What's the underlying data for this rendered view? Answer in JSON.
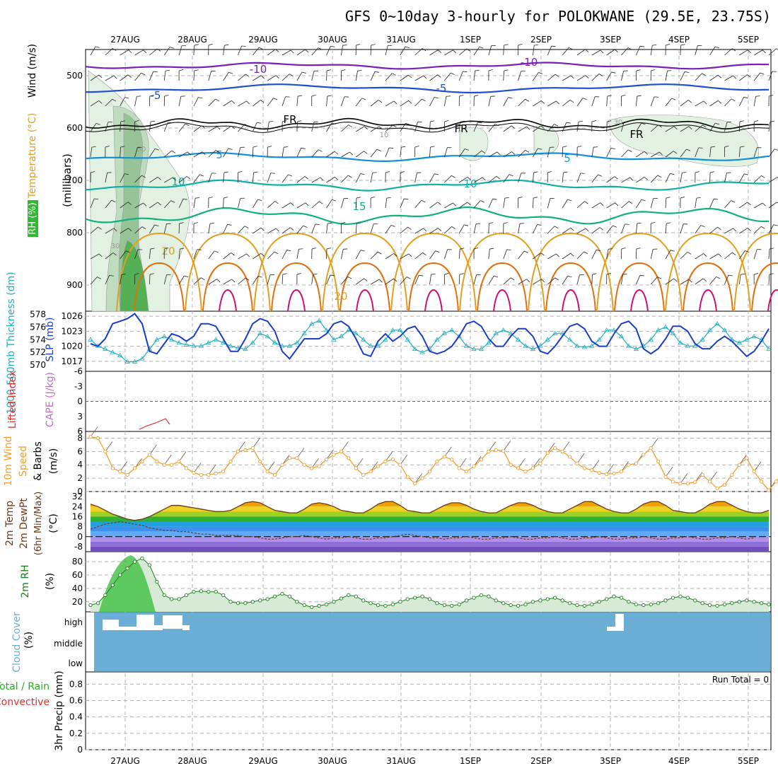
{
  "title": "GFS 0~10day 3-hourly for POLOKWANE (29.5E, 23.75S)",
  "date_labels": [
    "27AUG",
    "28AUG",
    "29AUG",
    "30AUG",
    "31AUG",
    "1SEP",
    "2SEP",
    "3SEP",
    "4SEP",
    "5SEP"
  ],
  "colors": {
    "temp_neg10": "#7a1fb8",
    "temp_neg5": "#1f4fd0",
    "temp_5": "#1090d8",
    "temp_10": "#10b0a8",
    "temp_15": "#10b080",
    "temp_20": "#e0a020",
    "temp_25": "#e07010",
    "temp_30": "#d01070",
    "slp": "#1a3ec8",
    "thickness": "#20b0c0",
    "wind_speed": "#f0a030",
    "rh": "#208020",
    "cloud": "#6aaed6",
    "lifted": "#e03030"
  },
  "panels": {
    "upper": {
      "label_rh": "RH (%)",
      "label_temp": "Temperature (°C)",
      "label_wind": "Wind (m/s)",
      "label_units": "(millibars)",
      "ticks": [
        "500",
        "600",
        "700",
        "800",
        "900"
      ],
      "contour_labels": [
        "-10",
        "-10",
        "-5",
        "-5",
        "FR",
        "FR",
        "FR",
        "5",
        "5",
        "10",
        "10",
        "15",
        "20",
        "20",
        "30",
        "10",
        "50",
        "30"
      ]
    },
    "slp": {
      "label_thick": "1000-500mb Thickness (dm)",
      "label_slp": "SLP (mb)",
      "left_ticks": [
        "578",
        "576",
        "574",
        "572",
        "570"
      ],
      "right_ticks": [
        "1026",
        "1023",
        "1020",
        "1017"
      ]
    },
    "cape": {
      "label_li": "Lifted Index",
      "label_cape": "CAPE (J/kg)",
      "ticks": [
        "-6",
        "-3",
        "0",
        "3",
        "6"
      ]
    },
    "wind10": {
      "label1": "10m Wind",
      "label2": "Speed",
      "label3": "& Barbs",
      "label4": "(m/s)",
      "ticks": [
        "8",
        "6",
        "4",
        "2",
        "0"
      ]
    },
    "temp2m": {
      "label1": "2m Temp",
      "label2": "2m DewPt",
      "label3": "(6hr Min/Max)",
      "label4": "(°C)",
      "ticks": [
        "32",
        "24",
        "16",
        "8",
        "0",
        "-8"
      ]
    },
    "rh2m": {
      "label1": "2m RH",
      "label2": "(%)",
      "ticks": [
        "80",
        "60",
        "40",
        "20"
      ]
    },
    "cloud": {
      "label1": "Cloud Cover",
      "label2": "(%)",
      "ticks": [
        "high",
        "middle",
        "low"
      ]
    },
    "precip": {
      "label1": "Total / Rain",
      "label2": "Convective",
      "label3": "3hr Precip (mm)",
      "run_total": "Run Total = 0",
      "ticks": [
        "0.8",
        "0.6",
        "0.4",
        "0.2",
        "0"
      ]
    }
  },
  "chart_data": {
    "type": "line",
    "x_unit": "3-hourly steps (0 = 26 Aug 12Z)",
    "series": [
      {
        "name": "SLP (mb)",
        "values": [
          1020.5,
          1020,
          1021.5,
          1024.5,
          1025,
          1025.5,
          1026.5,
          1024.5,
          1019,
          1018.5,
          1020.5,
          1022.5,
          1022,
          1021,
          1022,
          1024.5,
          1024.5,
          1024,
          1021.5,
          1019,
          1019,
          1021.5,
          1024.5,
          1025.5,
          1025,
          1023,
          1019,
          1017.5,
          1019.5,
          1021.5,
          1021.5,
          1021.5,
          1022.5,
          1024.5,
          1025,
          1024,
          1021.5,
          1018.5,
          1018,
          1021,
          1022.5,
          1021,
          1022,
          1023.5,
          1024,
          1022,
          1019,
          1018.5,
          1019,
          1020,
          1022,
          1024.5,
          1025,
          1024,
          1021.5,
          1020,
          1020,
          1022,
          1023.5,
          1023.5,
          1022,
          1019,
          1018.5,
          1020,
          1022,
          1024,
          1024.5,
          1023.5,
          1021,
          1020,
          1020,
          1022.5,
          1024.5,
          1025,
          1023.5,
          1019.5,
          1018.5,
          1019.5,
          1021.5,
          1024,
          1024,
          1023,
          1020.5,
          1019.5,
          1019.5,
          1021,
          1022,
          1021,
          1019.5,
          1018,
          1019,
          1021,
          1023.5
        ]
      },
      {
        "name": "1000-500mb Thickness (dm)",
        "values": [
          574,
          573,
          572.5,
          572,
          571.5,
          570.5,
          570.5,
          571,
          572.5,
          574,
          574.5,
          574,
          573.5,
          573.2,
          573,
          573,
          573.5,
          574,
          573.5,
          573,
          572.7,
          572.5,
          573.5,
          575,
          574.5,
          573.5,
          573,
          573,
          573.5,
          575,
          576.5,
          577,
          575.5,
          574,
          574.5,
          575.5,
          575,
          574,
          573,
          573,
          574,
          575.5,
          575.5,
          574,
          572.5,
          572,
          572.5,
          574,
          575,
          575.5,
          574.5,
          573,
          572.5,
          572.5,
          573.5,
          575,
          575.5,
          575,
          574,
          573,
          572.5,
          573,
          574,
          575,
          575,
          574,
          573,
          572.8,
          573,
          574,
          575.5,
          575.5,
          574.5,
          573,
          572.5,
          573,
          574,
          575.5,
          576,
          575,
          573.5,
          573,
          573,
          574,
          575.5,
          576.5,
          575.5,
          574,
          573.5,
          574,
          574.5,
          574,
          572.5
        ]
      },
      {
        "name": "10m Wind Speed (m/s)",
        "values": [
          8.2,
          8,
          6,
          3.5,
          3,
          2.5,
          3.5,
          4.5,
          5.5,
          4.5,
          4,
          4,
          4.5,
          3.5,
          2.8,
          2.5,
          2.5,
          2.7,
          3,
          4.5,
          6,
          6.2,
          6.5,
          4.5,
          3,
          2.5,
          4,
          5,
          5,
          4,
          3.5,
          3.8,
          4.8,
          5.5,
          6,
          5,
          3.5,
          2.5,
          3,
          3.8,
          4.5,
          4.8,
          4,
          2.2,
          1.2,
          2,
          3,
          4.5,
          5.2,
          4.8,
          3.5,
          3,
          3.8,
          4.8,
          6,
          6.2,
          6.1,
          4,
          3.5,
          3,
          3.5,
          4.2,
          5.8,
          6.5,
          6,
          5.2,
          4.2,
          3.5,
          3.2,
          2.8,
          2.6,
          2.7,
          3,
          4,
          4.2,
          5.5,
          6.5,
          4.5,
          2.2,
          1.5,
          1.2,
          1.2,
          1.4,
          2.5,
          1.5,
          0.5,
          1,
          2.5,
          4,
          5,
          3,
          1.5,
          0.2,
          1.5,
          3,
          4.5
        ]
      },
      {
        "name": "2m Temp (°C)",
        "values": [
          26,
          24,
          21,
          18,
          16,
          14,
          13,
          14,
          16,
          19,
          22,
          25,
          25,
          24,
          23,
          22,
          21,
          20,
          20,
          21,
          24,
          27,
          28,
          27,
          24,
          21,
          20,
          19,
          19,
          22,
          26,
          27,
          26,
          24,
          21,
          20,
          19,
          19,
          22,
          26,
          28,
          28,
          25,
          21,
          20,
          19,
          19,
          22,
          25,
          27,
          27,
          25,
          22,
          20,
          19,
          19,
          22,
          25,
          27,
          27,
          25,
          22,
          20,
          19,
          19,
          22,
          25,
          28,
          28,
          25,
          22,
          20,
          19,
          19,
          22,
          26,
          28,
          28,
          25,
          21,
          20,
          19,
          19,
          22,
          26,
          28,
          28,
          25,
          22,
          20,
          19,
          19,
          21
        ]
      },
      {
        "name": "2m DewPt (°C)",
        "values": [
          6,
          8,
          10,
          11,
          12,
          11,
          10,
          9,
          7,
          6,
          5,
          5,
          4,
          4,
          3,
          2,
          2,
          1,
          1,
          1,
          1,
          0,
          0,
          -1,
          -2,
          -2,
          -1,
          0,
          0,
          1,
          0,
          -1,
          -2,
          -1,
          -1,
          0,
          -1,
          -2,
          -2,
          -1,
          -1,
          0,
          1,
          2,
          1,
          0,
          -1,
          -1,
          -2,
          -1,
          -1,
          0,
          -1,
          -2,
          -2,
          -1,
          -1,
          0,
          -1,
          -2,
          -2,
          -1,
          -1,
          0,
          -1,
          -2,
          -2,
          -1,
          -1,
          0,
          -1,
          -2,
          -2,
          -1,
          -1,
          0,
          -1,
          -2,
          -2,
          -1,
          -1,
          0,
          -1,
          -2,
          -2,
          -1,
          -1,
          0,
          -1,
          -2,
          -1
        ]
      },
      {
        "name": "2m RH (%)",
        "values": [
          15,
          18,
          30,
          45,
          60,
          70,
          80,
          85,
          75,
          50,
          30,
          24,
          24,
          30,
          35,
          36,
          35,
          35,
          30,
          20,
          18,
          18,
          20,
          22,
          24,
          28,
          32,
          28,
          20,
          15,
          12,
          14,
          16,
          20,
          25,
          30,
          28,
          22,
          18,
          15,
          14,
          16,
          20,
          24,
          26,
          28,
          24,
          18,
          15,
          14,
          16,
          22,
          26,
          30,
          28,
          22,
          18,
          15,
          14,
          16,
          20,
          22,
          24,
          26,
          22,
          18,
          15,
          14,
          16,
          20,
          24,
          28,
          26,
          20,
          16,
          15,
          16,
          18,
          22,
          26,
          28,
          26,
          22,
          18,
          15,
          14,
          16,
          18,
          20,
          22,
          20,
          18,
          16
        ]
      }
    ],
    "ylim": {
      "slp": [
        1015,
        1027
      ],
      "thickness": [
        569,
        578.5
      ],
      "wind": [
        0,
        9
      ],
      "temp": [
        -12,
        36
      ],
      "rh": [
        5,
        95
      ]
    }
  }
}
